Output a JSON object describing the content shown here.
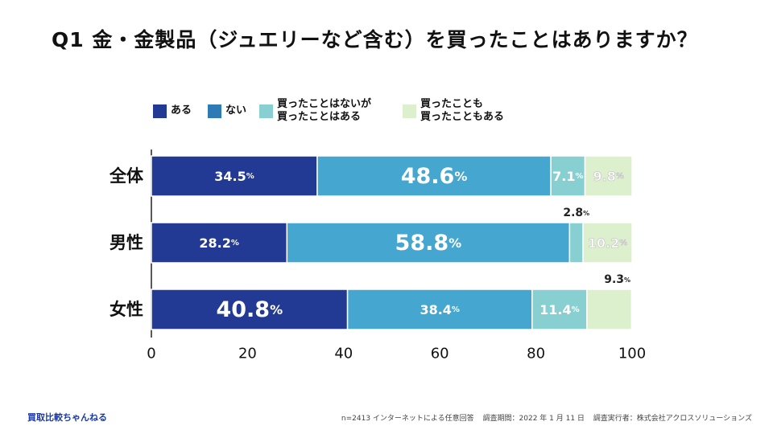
{
  "header": {
    "title": "Q1 金・金製品（ジュエリーなど含む）を買ったことはありますか？"
  },
  "legend": [
    {
      "lines": [
        "ある"
      ],
      "color": "#223a93"
    },
    {
      "lines": [
        "ない"
      ],
      "color": "#2e7ab5"
    },
    {
      "lines": [
        "買ったことはないが",
        "買ったことはある"
      ],
      "color": "#87cfd0"
    },
    {
      "lines": [
        "買ったことも",
        "買ったこともある"
      ],
      "color": "#ddf0cd"
    }
  ],
  "chart_data": {
    "type": "bar",
    "orientation": "horizontal",
    "stacked": true,
    "title": "Q1 金・金製品（ジュエリーなど含む）を買ったことはありますか？",
    "categories": [
      "全体",
      "男性",
      "女性"
    ],
    "series": [
      {
        "name": "ある",
        "values": [
          34.5,
          28.2,
          40.8
        ],
        "color": "#223a93"
      },
      {
        "name": "ない",
        "values": [
          48.6,
          58.8,
          38.4
        ],
        "color": "#45a6d0"
      },
      {
        "name": "買ったことはないが買ったことはある",
        "values": [
          7.1,
          2.8,
          11.4
        ],
        "color": "#87cfd0"
      },
      {
        "name": "買ったことも買ったこともある",
        "values": [
          9.8,
          10.2,
          9.3
        ],
        "color": "#ddf0cd"
      }
    ],
    "value_suffix": "%",
    "xlim": [
      0,
      100
    ],
    "xticks": [
      0,
      20,
      40,
      60,
      80,
      100
    ]
  },
  "footer": {
    "brand": "買取比較ちゃんねる",
    "sample": "n=2413 インターネットによる任意回答",
    "period": "調査期間：2022 年 1 月 11 日",
    "executor": "調査実行者：株式会社アクロスソリューションズ"
  }
}
